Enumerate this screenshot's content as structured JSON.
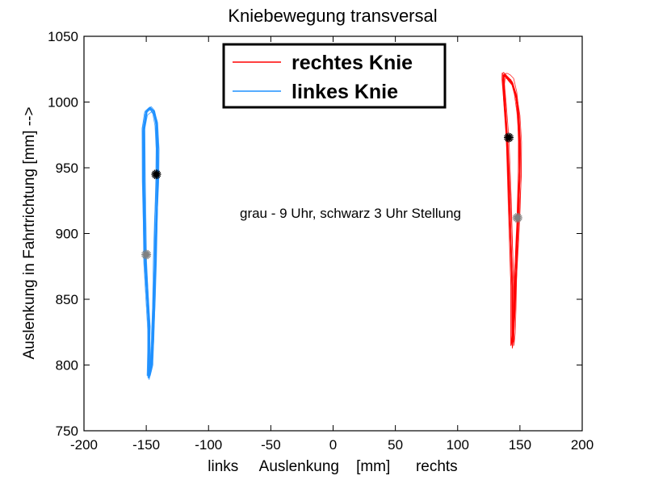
{
  "chart_data": {
    "type": "line",
    "title": "Kniebewegung transversal",
    "xlabel": "links     Auslenkung    [mm]      rechts",
    "ylabel": "Auslenkung in Fahrtrichtung [mm] -->",
    "xlim": [
      -200,
      200
    ],
    "ylim": [
      750,
      1050
    ],
    "xticks": [
      "-200",
      "-150",
      "-100",
      "-50",
      "0",
      "50",
      "100",
      "150",
      "200"
    ],
    "yticks": [
      "750",
      "800",
      "850",
      "900",
      "950",
      "1000",
      "1050"
    ],
    "grid": false,
    "legend_position": "top-center",
    "annotation": {
      "text": "grau - 9 Uhr, schwarz 3 Uhr Stellung",
      "x": -30,
      "y": 915
    },
    "series": [
      {
        "name": "rechtes Knie",
        "color": "#ff0000",
        "x": [
          144,
          142,
          140,
          138,
          137,
          137,
          138,
          139,
          141,
          144,
          147,
          149,
          150,
          150,
          149,
          148,
          147,
          146,
          145,
          144
        ],
        "y": [
          860,
          920,
          970,
          1000,
          1015,
          1020,
          1021,
          1020,
          1018,
          1015,
          1005,
          990,
          970,
          945,
          920,
          895,
          870,
          845,
          825,
          815
        ],
        "markers": [
          {
            "x": 141,
            "y": 973,
            "color": "#000000"
          },
          {
            "x": 148,
            "y": 912,
            "color": "#808080"
          }
        ]
      },
      {
        "name": "linkes Knie",
        "color": "#1e90ff",
        "x": [
          -148,
          -151,
          -152,
          -152,
          -150,
          -147,
          -144,
          -142,
          -141,
          -141,
          -142,
          -143,
          -144,
          -145,
          -146,
          -148
        ],
        "y": [
          830,
          880,
          940,
          980,
          993,
          996,
          993,
          985,
          965,
          940,
          910,
          880,
          850,
          820,
          800,
          792
        ],
        "markers": [
          {
            "x": -142,
            "y": 945,
            "color": "#000000"
          },
          {
            "x": -150,
            "y": 884,
            "color": "#808080"
          }
        ]
      }
    ]
  }
}
